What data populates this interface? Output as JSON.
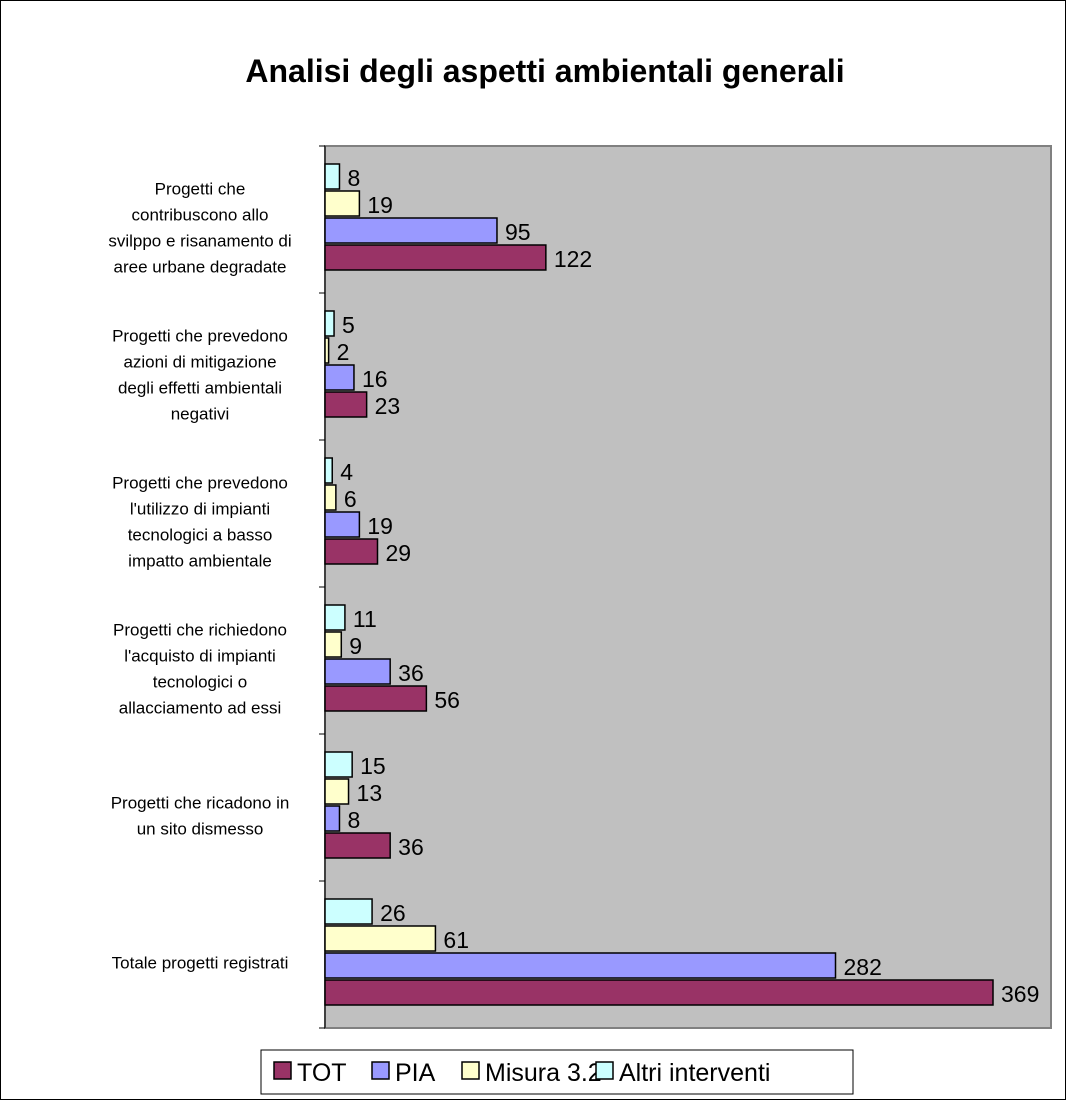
{
  "chart_data": {
    "type": "bar",
    "orientation": "horizontal",
    "title": "Analisi degli aspetti ambientali generali",
    "categories": [
      [
        "Progetti che",
        "contribuscono allo",
        "svilppo e risanamento di",
        "aree urbane degradate"
      ],
      [
        "Progetti che prevedono",
        "azioni di mitigazione",
        "degli effetti ambientali",
        "negativi"
      ],
      [
        "Progetti che prevedono",
        "l'utilizzo di impianti",
        "tecnologici a basso",
        "impatto ambientale"
      ],
      [
        "Progetti che richiedono",
        "l'acquisto di impianti",
        "tecnologici o",
        "allacciamento ad essi"
      ],
      [
        "Progetti che ricadono in",
        "un sito dismesso"
      ],
      [
        "Totale progetti registrati"
      ]
    ],
    "series": [
      {
        "name": "Altri interventi",
        "color": "#ccffff",
        "values": [
          8,
          5,
          4,
          11,
          15,
          26
        ]
      },
      {
        "name": "Misura 3.2",
        "color": "#ffffcc",
        "values": [
          19,
          2,
          6,
          9,
          13,
          61
        ]
      },
      {
        "name": "PIA",
        "color": "#9999ff",
        "values": [
          95,
          16,
          19,
          36,
          8,
          282
        ]
      },
      {
        "name": "TOT",
        "color": "#993366",
        "values": [
          122,
          23,
          29,
          56,
          36,
          369
        ]
      }
    ],
    "legend_order": [
      "TOT",
      "PIA",
      "Misura 3.2",
      "Altri interventi"
    ],
    "legend_position": "bottom",
    "xlim": [
      0,
      369
    ],
    "plot_background": "#c0c0c0",
    "grid": false
  }
}
